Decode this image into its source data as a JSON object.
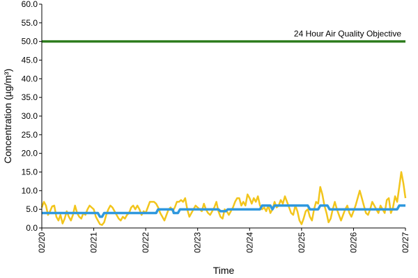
{
  "chart_data": {
    "type": "line",
    "title": "",
    "xlabel": "Time",
    "ylabel": "Concentration (µg/m³)",
    "ylim": [
      0,
      60
    ],
    "yticks": [
      "0.0",
      "5.0",
      "10.0",
      "15.0",
      "20.0",
      "25.0",
      "30.0",
      "35.0",
      "40.0",
      "45.0",
      "50.0",
      "55.0",
      "60.0"
    ],
    "xticks": [
      "02/20",
      "02/21",
      "02/22",
      "02/23",
      "02/24",
      "02/25",
      "02/26",
      "02/27"
    ],
    "xrange_days": [
      0,
      7
    ],
    "grid": false,
    "annotation": "24 Hour Air Quality Objective",
    "objective_value": 50,
    "colors": {
      "objective": "#2e7d1e",
      "hourly": "#f2c51c",
      "rolling": "#2f98de"
    },
    "series": [
      {
        "key": "hourly",
        "points": [
          [
            0.0,
            5.5
          ],
          [
            0.04,
            7.0
          ],
          [
            0.08,
            6.0
          ],
          [
            0.12,
            3.5
          ],
          [
            0.16,
            4.5
          ],
          [
            0.2,
            5.8
          ],
          [
            0.24,
            6.0
          ],
          [
            0.28,
            3.0
          ],
          [
            0.32,
            2.0
          ],
          [
            0.36,
            3.5
          ],
          [
            0.4,
            1.2
          ],
          [
            0.44,
            2.5
          ],
          [
            0.48,
            4.5
          ],
          [
            0.52,
            3.0
          ],
          [
            0.56,
            2.0
          ],
          [
            0.6,
            3.5
          ],
          [
            0.64,
            6.0
          ],
          [
            0.68,
            4.0
          ],
          [
            0.72,
            3.0
          ],
          [
            0.76,
            2.5
          ],
          [
            0.8,
            4.0
          ],
          [
            0.84,
            3.5
          ],
          [
            0.88,
            5.0
          ],
          [
            0.92,
            6.0
          ],
          [
            0.96,
            5.5
          ],
          [
            1.0,
            5.0
          ],
          [
            1.04,
            3.0
          ],
          [
            1.08,
            2.0
          ],
          [
            1.12,
            1.0
          ],
          [
            1.16,
            0.8
          ],
          [
            1.2,
            1.5
          ],
          [
            1.24,
            3.5
          ],
          [
            1.28,
            5.0
          ],
          [
            1.32,
            6.0
          ],
          [
            1.36,
            5.5
          ],
          [
            1.4,
            4.5
          ],
          [
            1.44,
            3.5
          ],
          [
            1.48,
            2.5
          ],
          [
            1.52,
            2.0
          ],
          [
            1.56,
            3.0
          ],
          [
            1.6,
            2.5
          ],
          [
            1.64,
            3.5
          ],
          [
            1.68,
            4.0
          ],
          [
            1.72,
            5.5
          ],
          [
            1.76,
            6.0
          ],
          [
            1.8,
            5.0
          ],
          [
            1.84,
            6.0
          ],
          [
            1.88,
            5.0
          ],
          [
            1.92,
            3.5
          ],
          [
            1.96,
            4.5
          ],
          [
            2.0,
            4.0
          ],
          [
            2.04,
            5.5
          ],
          [
            2.08,
            7.0
          ],
          [
            2.12,
            7.0
          ],
          [
            2.16,
            7.0
          ],
          [
            2.2,
            6.5
          ],
          [
            2.24,
            5.5
          ],
          [
            2.28,
            4.0
          ],
          [
            2.32,
            3.0
          ],
          [
            2.36,
            2.0
          ],
          [
            2.4,
            3.5
          ],
          [
            2.44,
            5.0
          ],
          [
            2.48,
            5.5
          ],
          [
            2.52,
            4.5
          ],
          [
            2.56,
            5.5
          ],
          [
            2.6,
            7.0
          ],
          [
            2.64,
            7.0
          ],
          [
            2.68,
            7.5
          ],
          [
            2.72,
            7.0
          ],
          [
            2.76,
            8.0
          ],
          [
            2.8,
            5.0
          ],
          [
            2.84,
            3.0
          ],
          [
            2.88,
            4.0
          ],
          [
            2.92,
            5.0
          ],
          [
            2.96,
            6.0
          ],
          [
            3.0,
            5.5
          ],
          [
            3.04,
            5.0
          ],
          [
            3.08,
            4.5
          ],
          [
            3.12,
            6.5
          ],
          [
            3.16,
            5.0
          ],
          [
            3.2,
            4.0
          ],
          [
            3.24,
            3.5
          ],
          [
            3.28,
            4.5
          ],
          [
            3.32,
            5.5
          ],
          [
            3.36,
            7.0
          ],
          [
            3.4,
            4.5
          ],
          [
            3.44,
            3.0
          ],
          [
            3.48,
            2.5
          ],
          [
            3.52,
            5.0
          ],
          [
            3.56,
            4.5
          ],
          [
            3.6,
            3.5
          ],
          [
            3.64,
            4.5
          ],
          [
            3.68,
            5.5
          ],
          [
            3.72,
            7.0
          ],
          [
            3.76,
            8.0
          ],
          [
            3.8,
            8.0
          ],
          [
            3.84,
            6.0
          ],
          [
            3.88,
            7.0
          ],
          [
            3.92,
            6.0
          ],
          [
            3.96,
            9.0
          ],
          [
            4.0,
            8.0
          ],
          [
            4.04,
            6.5
          ],
          [
            4.08,
            8.0
          ],
          [
            4.12,
            7.0
          ],
          [
            4.16,
            8.5
          ],
          [
            4.2,
            6.0
          ],
          [
            4.24,
            5.0
          ],
          [
            4.28,
            5.5
          ],
          [
            4.32,
            4.5
          ],
          [
            4.36,
            6.0
          ],
          [
            4.4,
            4.0
          ],
          [
            4.44,
            5.0
          ],
          [
            4.48,
            7.0
          ],
          [
            4.52,
            5.5
          ],
          [
            4.56,
            6.0
          ],
          [
            4.6,
            7.5
          ],
          [
            4.64,
            6.5
          ],
          [
            4.68,
            8.5
          ],
          [
            4.72,
            7.0
          ],
          [
            4.76,
            5.5
          ],
          [
            4.8,
            4.0
          ],
          [
            4.84,
            3.5
          ],
          [
            4.88,
            6.0
          ],
          [
            4.92,
            4.5
          ],
          [
            4.96,
            2.0
          ],
          [
            5.0,
            1.0
          ],
          [
            5.04,
            2.5
          ],
          [
            5.08,
            4.5
          ],
          [
            5.12,
            5.0
          ],
          [
            5.16,
            3.0
          ],
          [
            5.2,
            2.0
          ],
          [
            5.24,
            5.0
          ],
          [
            5.28,
            7.0
          ],
          [
            5.32,
            6.5
          ],
          [
            5.36,
            11.0
          ],
          [
            5.4,
            9.0
          ],
          [
            5.44,
            6.0
          ],
          [
            5.48,
            4.0
          ],
          [
            5.52,
            1.5
          ],
          [
            5.56,
            2.5
          ],
          [
            5.6,
            5.0
          ],
          [
            5.64,
            7.0
          ],
          [
            5.68,
            5.0
          ],
          [
            5.72,
            3.5
          ],
          [
            5.76,
            2.0
          ],
          [
            5.8,
            3.5
          ],
          [
            5.84,
            5.0
          ],
          [
            5.88,
            6.0
          ],
          [
            5.92,
            4.0
          ],
          [
            5.96,
            3.0
          ],
          [
            6.0,
            4.5
          ],
          [
            6.04,
            6.0
          ],
          [
            6.08,
            8.0
          ],
          [
            6.12,
            10.0
          ],
          [
            6.16,
            8.0
          ],
          [
            6.2,
            6.0
          ],
          [
            6.24,
            4.0
          ],
          [
            6.28,
            3.5
          ],
          [
            6.32,
            5.0
          ],
          [
            6.36,
            7.0
          ],
          [
            6.4,
            6.0
          ],
          [
            6.44,
            5.0
          ],
          [
            6.48,
            4.0
          ],
          [
            6.52,
            6.0
          ],
          [
            6.56,
            5.0
          ],
          [
            6.6,
            4.0
          ],
          [
            6.64,
            7.5
          ],
          [
            6.68,
            8.0
          ],
          [
            6.72,
            4.0
          ],
          [
            6.76,
            5.5
          ],
          [
            6.8,
            8.5
          ],
          [
            6.84,
            7.0
          ],
          [
            6.88,
            11.0
          ],
          [
            6.92,
            15.0
          ],
          [
            6.96,
            12.0
          ],
          [
            7.0,
            8.0
          ]
        ]
      },
      {
        "key": "rolling",
        "points": [
          [
            0.0,
            4.0
          ],
          [
            1.08,
            4.0
          ],
          [
            1.12,
            3.0
          ],
          [
            1.16,
            3.0
          ],
          [
            1.2,
            4.0
          ],
          [
            2.2,
            4.0
          ],
          [
            2.24,
            5.0
          ],
          [
            2.52,
            5.0
          ],
          [
            2.54,
            4.0
          ],
          [
            2.62,
            4.0
          ],
          [
            2.66,
            5.0
          ],
          [
            3.4,
            5.0
          ],
          [
            3.44,
            4.5
          ],
          [
            3.54,
            4.5
          ],
          [
            3.58,
            5.0
          ],
          [
            4.2,
            5.0
          ],
          [
            4.24,
            6.0
          ],
          [
            4.4,
            6.0
          ],
          [
            4.44,
            5.0
          ],
          [
            4.48,
            6.0
          ],
          [
            5.12,
            6.0
          ],
          [
            5.16,
            5.0
          ],
          [
            5.32,
            5.0
          ],
          [
            5.36,
            6.0
          ],
          [
            5.5,
            6.0
          ],
          [
            5.54,
            5.0
          ],
          [
            6.84,
            5.0
          ],
          [
            6.88,
            6.0
          ],
          [
            7.0,
            6.0
          ]
        ]
      }
    ]
  }
}
